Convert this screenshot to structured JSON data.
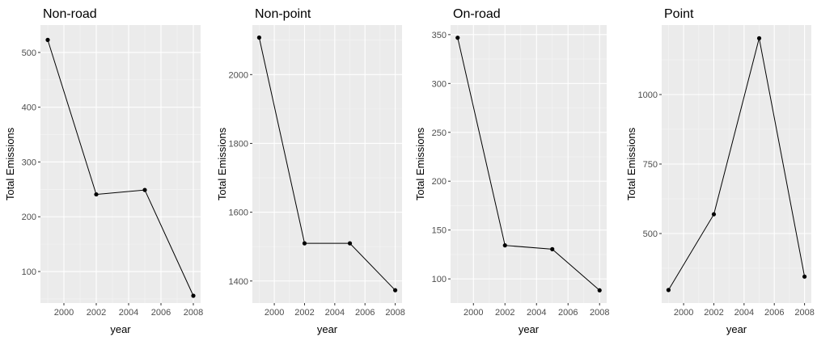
{
  "chart_data": [
    {
      "type": "line",
      "title": "Non-road",
      "xlabel": "year",
      "ylabel": "Total Emissions",
      "x": [
        1999,
        2002,
        2005,
        2008
      ],
      "values": [
        522.9,
        240.8,
        248.9,
        55.8
      ],
      "xlim": [
        1998.55,
        2008.45
      ],
      "ylim": [
        42.5,
        550
      ],
      "xticks": [
        2000,
        2002,
        2004,
        2006,
        2008
      ],
      "xtick_labels": [
        "2000",
        "2002",
        "2004",
        "2006",
        "2008"
      ],
      "yticks": [
        100,
        200,
        300,
        400,
        500
      ],
      "ytick_labels": [
        "100",
        "200",
        "300",
        "400",
        "500"
      ],
      "grid": true
    },
    {
      "type": "line",
      "title": "Non-point",
      "xlabel": "year",
      "ylabel": "Total Emissions",
      "x": [
        1999,
        2002,
        2005,
        2008
      ],
      "values": [
        2107.6,
        1509.5,
        1509.5,
        1373.2
      ],
      "xlim": [
        1998.55,
        2008.45
      ],
      "ylim": [
        1336,
        2144
      ],
      "xticks": [
        2000,
        2002,
        2004,
        2006,
        2008
      ],
      "xtick_labels": [
        "2000",
        "2002",
        "2004",
        "2006",
        "2008"
      ],
      "yticks": [
        1400,
        1600,
        1800,
        2000
      ],
      "ytick_labels": [
        "1400",
        "1600",
        "1800",
        "2000"
      ],
      "grid": true
    },
    {
      "type": "line",
      "title": "On-road",
      "xlabel": "year",
      "ylabel": "Total Emissions",
      "x": [
        1999,
        2002,
        2005,
        2008
      ],
      "values": [
        346.8,
        134.3,
        130.4,
        88.3
      ],
      "xlim": [
        1998.55,
        2008.45
      ],
      "ylim": [
        75.3,
        359.8
      ],
      "xticks": [
        2000,
        2002,
        2004,
        2006,
        2008
      ],
      "xtick_labels": [
        "2000",
        "2002",
        "2004",
        "2006",
        "2008"
      ],
      "yticks": [
        100,
        150,
        200,
        250,
        300,
        350
      ],
      "ytick_labels": [
        "100",
        "150",
        "200",
        "250",
        "300",
        "350"
      ],
      "grid": true
    },
    {
      "type": "line",
      "title": "Point",
      "xlabel": "year",
      "ylabel": "Total Emissions",
      "x": [
        1999,
        2002,
        2005,
        2008
      ],
      "values": [
        296.8,
        569.3,
        1202.5,
        344.98
      ],
      "xlim": [
        1998.55,
        2008.45
      ],
      "ylim": [
        250,
        1250
      ],
      "xticks": [
        2000,
        2002,
        2004,
        2006,
        2008
      ],
      "xtick_labels": [
        "2000",
        "2002",
        "2004",
        "2006",
        "2008"
      ],
      "yticks": [
        500,
        750,
        1000
      ],
      "ytick_labels": [
        "500",
        "750",
        "1000"
      ],
      "grid": true
    }
  ]
}
